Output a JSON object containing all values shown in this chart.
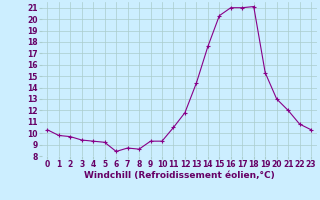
{
  "x": [
    0,
    1,
    2,
    3,
    4,
    5,
    6,
    7,
    8,
    9,
    10,
    11,
    12,
    13,
    14,
    15,
    16,
    17,
    18,
    19,
    20,
    21,
    22,
    23
  ],
  "y": [
    10.3,
    9.8,
    9.7,
    9.4,
    9.3,
    9.2,
    8.4,
    8.7,
    8.6,
    9.3,
    9.3,
    10.5,
    11.8,
    14.4,
    17.6,
    20.3,
    21.0,
    21.0,
    21.1,
    15.3,
    13.0,
    12.0,
    10.8,
    10.3
  ],
  "ylim": [
    8,
    21.5
  ],
  "xlim": [
    -0.5,
    23.5
  ],
  "yticks": [
    8,
    9,
    10,
    11,
    12,
    13,
    14,
    15,
    16,
    17,
    18,
    19,
    20,
    21
  ],
  "xticks": [
    0,
    1,
    2,
    3,
    4,
    5,
    6,
    7,
    8,
    9,
    10,
    11,
    12,
    13,
    14,
    15,
    16,
    17,
    18,
    19,
    20,
    21,
    22,
    23
  ],
  "xlabel": "Windchill (Refroidissement éolien,°C)",
  "line_color": "#880088",
  "marker": "+",
  "bg_color": "#cceeff",
  "grid_color": "#aacccc",
  "text_color": "#660066",
  "tick_fontsize": 5.5,
  "label_fontsize": 6.5
}
